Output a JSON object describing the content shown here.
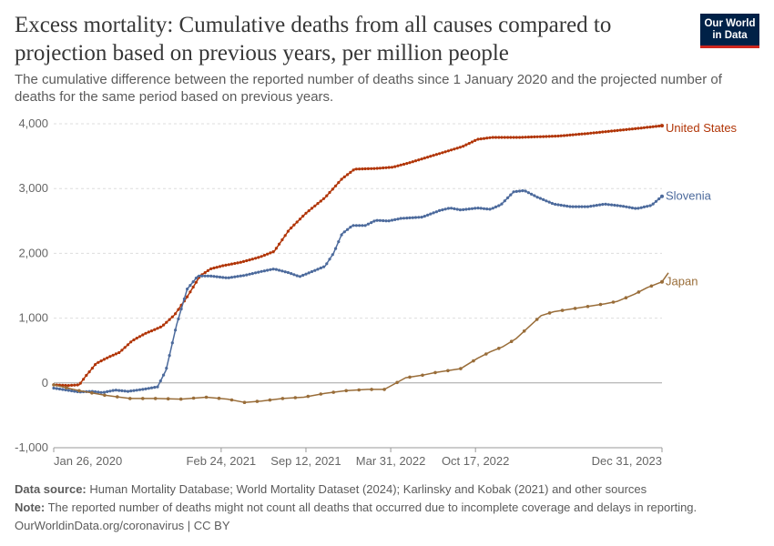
{
  "title": "Excess mortality: Cumulative deaths from all causes compared to projection based on previous years, per million people",
  "subtitle": "The cumulative difference between the reported number of deaths since 1 January 2020 and the projected number of deaths for the same period based on previous years.",
  "logo": {
    "line1": "Our World",
    "line2": "in Data"
  },
  "footer": {
    "source_label": "Data source:",
    "source_text": "Human Mortality Database; World Mortality Dataset (2024); Karlinsky and Kobak (2021) and other sources",
    "note_label": "Note:",
    "note_text": "The reported number of deaths might not count all deaths that occurred due to incomplete coverage and delays in reporting.",
    "credit": "OurWorldinData.org/coronavirus | CC BY"
  },
  "colors": {
    "united_states": "#b13507",
    "slovenia": "#4c6a9c",
    "japan": "#996d39",
    "grid": "#dddddd",
    "zero_line": "#a3a3a3"
  },
  "chart_data": {
    "type": "line",
    "x_unit": "days since 2020-01-26",
    "xlim": [
      0,
      1435
    ],
    "ylim": [
      -1000,
      4000
    ],
    "y_ticks": [
      {
        "value": -1000,
        "label": "-1,000"
      },
      {
        "value": 0,
        "label": "0"
      },
      {
        "value": 1000,
        "label": "1,000"
      },
      {
        "value": 2000,
        "label": "2,000"
      },
      {
        "value": 3000,
        "label": "3,000"
      },
      {
        "value": 4000,
        "label": "4,000"
      }
    ],
    "x_ticks": [
      {
        "value": 0,
        "label": "Jan 26, 2020"
      },
      {
        "value": 395,
        "label": "Feb 24, 2021"
      },
      {
        "value": 595,
        "label": "Sep 12, 2021"
      },
      {
        "value": 795,
        "label": "Mar 31, 2022"
      },
      {
        "value": 995,
        "label": "Oct 17, 2022"
      },
      {
        "value": 1435,
        "label": "Dec 31, 2023"
      }
    ],
    "grid": "horizontal",
    "series": [
      {
        "name": "United States",
        "key": "united_states",
        "marker_every_days": 7,
        "points": [
          [
            0,
            -30
          ],
          [
            35,
            -40
          ],
          [
            60,
            -30
          ],
          [
            75,
            100
          ],
          [
            100,
            300
          ],
          [
            130,
            400
          ],
          [
            155,
            470
          ],
          [
            185,
            650
          ],
          [
            215,
            760
          ],
          [
            255,
            870
          ],
          [
            285,
            1050
          ],
          [
            315,
            1330
          ],
          [
            345,
            1650
          ],
          [
            370,
            1760
          ],
          [
            400,
            1810
          ],
          [
            440,
            1860
          ],
          [
            485,
            1940
          ],
          [
            520,
            2030
          ],
          [
            555,
            2360
          ],
          [
            595,
            2620
          ],
          [
            640,
            2860
          ],
          [
            680,
            3150
          ],
          [
            710,
            3300
          ],
          [
            760,
            3310
          ],
          [
            800,
            3330
          ],
          [
            840,
            3400
          ],
          [
            880,
            3480
          ],
          [
            920,
            3560
          ],
          [
            965,
            3650
          ],
          [
            1000,
            3760
          ],
          [
            1035,
            3790
          ],
          [
            1100,
            3790
          ],
          [
            1190,
            3810
          ],
          [
            1260,
            3850
          ],
          [
            1320,
            3890
          ],
          [
            1380,
            3930
          ],
          [
            1435,
            3970
          ]
        ]
      },
      {
        "name": "Slovenia",
        "key": "slovenia",
        "marker_every_days": 7,
        "points": [
          [
            0,
            -80
          ],
          [
            30,
            -110
          ],
          [
            60,
            -140
          ],
          [
            90,
            -130
          ],
          [
            115,
            -150
          ],
          [
            145,
            -110
          ],
          [
            175,
            -130
          ],
          [
            210,
            -100
          ],
          [
            245,
            -60
          ],
          [
            265,
            200
          ],
          [
            290,
            900
          ],
          [
            315,
            1450
          ],
          [
            340,
            1650
          ],
          [
            370,
            1650
          ],
          [
            410,
            1620
          ],
          [
            450,
            1660
          ],
          [
            490,
            1720
          ],
          [
            520,
            1760
          ],
          [
            555,
            1700
          ],
          [
            580,
            1640
          ],
          [
            610,
            1720
          ],
          [
            640,
            1800
          ],
          [
            660,
            2000
          ],
          [
            680,
            2300
          ],
          [
            705,
            2430
          ],
          [
            735,
            2430
          ],
          [
            760,
            2510
          ],
          [
            790,
            2500
          ],
          [
            820,
            2540
          ],
          [
            870,
            2560
          ],
          [
            910,
            2660
          ],
          [
            935,
            2700
          ],
          [
            960,
            2670
          ],
          [
            1000,
            2700
          ],
          [
            1030,
            2680
          ],
          [
            1055,
            2750
          ],
          [
            1085,
            2950
          ],
          [
            1110,
            2970
          ],
          [
            1140,
            2870
          ],
          [
            1180,
            2760
          ],
          [
            1220,
            2720
          ],
          [
            1260,
            2720
          ],
          [
            1300,
            2760
          ],
          [
            1340,
            2730
          ],
          [
            1375,
            2690
          ],
          [
            1410,
            2740
          ],
          [
            1435,
            2880
          ]
        ]
      },
      {
        "name": "Japan",
        "key": "japan",
        "marker_every_days": 30,
        "points": [
          [
            0,
            -30
          ],
          [
            60,
            -120
          ],
          [
            120,
            -190
          ],
          [
            180,
            -240
          ],
          [
            240,
            -240
          ],
          [
            300,
            -250
          ],
          [
            360,
            -220
          ],
          [
            410,
            -250
          ],
          [
            450,
            -300
          ],
          [
            490,
            -280
          ],
          [
            540,
            -240
          ],
          [
            590,
            -220
          ],
          [
            640,
            -160
          ],
          [
            690,
            -120
          ],
          [
            740,
            -100
          ],
          [
            780,
            -100
          ],
          [
            800,
            -30
          ],
          [
            830,
            80
          ],
          [
            870,
            120
          ],
          [
            900,
            160
          ],
          [
            930,
            190
          ],
          [
            960,
            220
          ],
          [
            1000,
            380
          ],
          [
            1030,
            480
          ],
          [
            1060,
            560
          ],
          [
            1090,
            680
          ],
          [
            1120,
            860
          ],
          [
            1150,
            1040
          ],
          [
            1180,
            1100
          ],
          [
            1220,
            1140
          ],
          [
            1260,
            1180
          ],
          [
            1300,
            1220
          ],
          [
            1330,
            1260
          ],
          [
            1370,
            1370
          ],
          [
            1400,
            1470
          ],
          [
            1435,
            1560
          ],
          [
            1450,
            1700
          ]
        ]
      }
    ]
  }
}
